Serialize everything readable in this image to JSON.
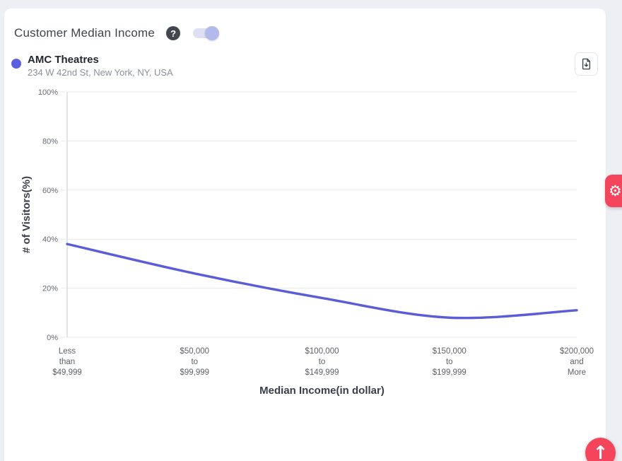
{
  "page": {
    "background": "#edeff4",
    "accent_red": "#f5455c"
  },
  "header": {
    "title": "Customer Median Income",
    "toggle_on": true
  },
  "icons": {
    "help": "?",
    "gear": "⚙",
    "arrow_up": "↑"
  },
  "legend": {
    "name": "AMC Theatres",
    "address": "234 W 42nd St, New York, NY, USA",
    "dot_color": "#5b5fe0"
  },
  "chart_data": {
    "type": "line",
    "title": "Customer Median Income",
    "categories": [
      "Less than $49,999",
      "$50,000 to $99,999",
      "$100,000 to $149,999",
      "$150,000 to $199,999",
      "$200,000 and More"
    ],
    "category_lines": [
      [
        "Less",
        "than",
        "$49,999"
      ],
      [
        "$50,000",
        "to",
        "$99,999"
      ],
      [
        "$100,000",
        "to",
        "$149,999"
      ],
      [
        "$150,000",
        "to",
        "$199,999"
      ],
      [
        "$200,000",
        "and",
        "More"
      ]
    ],
    "series": [
      {
        "name": "AMC Theatres",
        "color": "#5a5cd8",
        "values": [
          38,
          26,
          16,
          8,
          11
        ]
      }
    ],
    "xlabel": "Median Income(in dollar)",
    "ylabel": "# of Visitors(%)",
    "ylim": [
      0,
      100
    ],
    "y_ticks": [
      "0%",
      "20%",
      "40%",
      "60%",
      "80%",
      "100%"
    ],
    "grid": true,
    "legend_position": "top-left",
    "colors": {
      "gridline": "#e8e8ea",
      "axis_line": "#c8cacd",
      "tick_text": "#65696f",
      "label_text": "#5d6167",
      "axis_title": "#3b3e48"
    }
  }
}
